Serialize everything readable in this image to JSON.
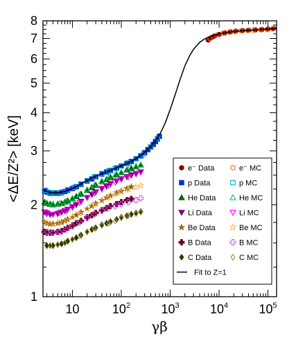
{
  "chart_data": {
    "type": "scatter",
    "title": "",
    "xlabel": "γβ",
    "ylabel": "<ΔE/Z²> [keV]",
    "xscale": "log",
    "yscale": "log",
    "xlim": [
      2.5,
      150000
    ],
    "ylim": [
      1,
      8
    ],
    "legend_position": "right",
    "x_ticks": [
      {
        "value": 10,
        "base": "10",
        "exp": ""
      },
      {
        "value": 100,
        "base": "10",
        "exp": "2"
      },
      {
        "value": 1000,
        "base": "10",
        "exp": "3"
      },
      {
        "value": 10000,
        "base": "10",
        "exp": "4"
      },
      {
        "value": 100000,
        "base": "10",
        "exp": "5"
      }
    ],
    "y_ticks": [
      {
        "value": 1,
        "label": "1"
      },
      {
        "value": 2,
        "label": "2"
      },
      {
        "value": 3,
        "label": "3"
      },
      {
        "value": 4,
        "label": "4"
      },
      {
        "value": 5,
        "label": "5"
      },
      {
        "value": 6,
        "label": "6"
      },
      {
        "value": 7,
        "label": "7"
      },
      {
        "value": 8,
        "label": "8"
      }
    ],
    "series": [
      {
        "name": "e⁻ Data",
        "marker": "circle",
        "filled": true,
        "color": "#8b0000",
        "x": [
          6000,
          7000,
          8000,
          10000,
          13000,
          17000,
          22000,
          30000,
          40000,
          55000,
          75000,
          100000,
          130000
        ],
        "y": [
          6.92,
          7.05,
          7.13,
          7.22,
          7.3,
          7.36,
          7.4,
          7.43,
          7.45,
          7.47,
          7.49,
          7.52,
          7.55
        ]
      },
      {
        "name": "e⁻ MC",
        "marker": "circle",
        "filled": false,
        "color": "#ff6600",
        "x": [
          6500,
          9000,
          12000,
          16000,
          21000,
          28000,
          38000,
          50000,
          70000,
          95000,
          125000
        ],
        "y": [
          7.0,
          7.18,
          7.28,
          7.34,
          7.38,
          7.42,
          7.44,
          7.46,
          7.48,
          7.5,
          7.53
        ]
      },
      {
        "name": "p Data",
        "marker": "square",
        "filled": true,
        "color": "#0033cc",
        "x": [
          2.7,
          3,
          3.5,
          4,
          5,
          6,
          7,
          8,
          10,
          12,
          15,
          20,
          25,
          30,
          40,
          50,
          60,
          80,
          100,
          130,
          160,
          200,
          250,
          300,
          350,
          400,
          450,
          500,
          550,
          600
        ],
        "y": [
          2.22,
          2.2,
          2.18,
          2.18,
          2.18,
          2.19,
          2.21,
          2.23,
          2.26,
          2.29,
          2.33,
          2.39,
          2.43,
          2.47,
          2.52,
          2.56,
          2.59,
          2.64,
          2.68,
          2.73,
          2.77,
          2.83,
          2.89,
          2.96,
          3.03,
          3.09,
          3.15,
          3.22,
          3.28,
          3.35
        ]
      },
      {
        "name": "p MC",
        "marker": "square",
        "filled": false,
        "color": "#00aacc",
        "x": [
          2.8,
          3.5,
          4.5,
          6,
          8,
          11,
          15,
          20,
          28,
          40,
          55,
          75,
          100,
          140,
          200,
          280,
          400,
          550
        ],
        "y": [
          2.23,
          2.19,
          2.19,
          2.2,
          2.24,
          2.28,
          2.34,
          2.4,
          2.47,
          2.53,
          2.58,
          2.63,
          2.68,
          2.74,
          2.83,
          2.92,
          3.09,
          3.3
        ]
      },
      {
        "name": "He Data",
        "marker": "triangle-up",
        "filled": true,
        "color": "#006600",
        "x": [
          2.7,
          3,
          3.5,
          4,
          5,
          6,
          7,
          8,
          10,
          12,
          15,
          20,
          25,
          30,
          40,
          50,
          60,
          80,
          100,
          130,
          160,
          200,
          250
        ],
        "y": [
          2.04,
          2.02,
          2.01,
          2.0,
          2.01,
          2.02,
          2.04,
          2.06,
          2.09,
          2.13,
          2.17,
          2.23,
          2.28,
          2.32,
          2.38,
          2.42,
          2.46,
          2.51,
          2.55,
          2.6,
          2.63,
          2.67,
          2.7
        ]
      },
      {
        "name": "He MC",
        "marker": "triangle-up",
        "filled": false,
        "color": "#00cc66",
        "x": [
          3,
          4,
          5.5,
          7.5,
          10,
          14,
          20,
          28,
          40,
          55,
          75,
          100,
          140,
          200,
          250
        ],
        "y": [
          2.03,
          2.01,
          2.02,
          2.05,
          2.1,
          2.16,
          2.24,
          2.31,
          2.39,
          2.45,
          2.5,
          2.55,
          2.6,
          2.66,
          2.7
        ]
      },
      {
        "name": "Li Data",
        "marker": "triangle-down",
        "filled": true,
        "color": "#800080",
        "x": [
          2.7,
          3,
          3.5,
          4,
          5,
          6,
          7,
          8,
          10,
          12,
          15,
          20,
          25,
          30,
          40,
          50,
          60,
          80,
          100,
          130,
          160,
          200,
          250
        ],
        "y": [
          1.89,
          1.87,
          1.86,
          1.86,
          1.87,
          1.89,
          1.91,
          1.93,
          1.97,
          2.0,
          2.05,
          2.11,
          2.16,
          2.2,
          2.26,
          2.3,
          2.34,
          2.39,
          2.43,
          2.47,
          2.5,
          2.53,
          2.56
        ]
      },
      {
        "name": "Li MC",
        "marker": "triangle-down",
        "filled": false,
        "color": "#ff00ff",
        "x": [
          3,
          4,
          5.5,
          7.5,
          10,
          14,
          20,
          28,
          40,
          55,
          75,
          100,
          140,
          200,
          250
        ],
        "y": [
          1.88,
          1.86,
          1.88,
          1.91,
          1.96,
          2.03,
          2.11,
          2.18,
          2.25,
          2.31,
          2.37,
          2.42,
          2.47,
          2.52,
          2.56
        ]
      },
      {
        "name": "Be Data",
        "marker": "star",
        "filled": true,
        "color": "#8b6914",
        "x": [
          2.7,
          3,
          3.5,
          4,
          5,
          6,
          7,
          8,
          10,
          12,
          15,
          20,
          25,
          30,
          40,
          50,
          60,
          80,
          100,
          130,
          160
        ],
        "y": [
          1.75,
          1.74,
          1.73,
          1.73,
          1.74,
          1.75,
          1.77,
          1.79,
          1.82,
          1.85,
          1.89,
          1.94,
          1.98,
          2.02,
          2.07,
          2.11,
          2.14,
          2.19,
          2.22,
          2.26,
          2.29
        ]
      },
      {
        "name": "Be MC",
        "marker": "star",
        "filled": false,
        "color": "#ffaa44",
        "x": [
          3,
          4,
          5.5,
          7.5,
          10,
          14,
          20,
          28,
          40,
          55,
          75,
          100,
          140,
          200,
          250
        ],
        "y": [
          1.75,
          1.74,
          1.75,
          1.78,
          1.82,
          1.87,
          1.94,
          2.0,
          2.06,
          2.11,
          2.16,
          2.2,
          2.24,
          2.28,
          2.31
        ]
      },
      {
        "name": "B Data",
        "marker": "cross",
        "filled": true,
        "color": "#660022",
        "x": [
          2.7,
          3,
          3.5,
          4,
          5,
          6,
          7,
          8,
          10,
          12,
          15,
          20,
          25,
          30,
          40,
          50,
          60,
          80,
          100,
          130,
          160
        ],
        "y": [
          1.63,
          1.62,
          1.62,
          1.62,
          1.63,
          1.64,
          1.66,
          1.68,
          1.71,
          1.74,
          1.77,
          1.82,
          1.85,
          1.88,
          1.92,
          1.95,
          1.98,
          2.01,
          2.04,
          2.07,
          2.09
        ]
      },
      {
        "name": "B MC",
        "marker": "cross",
        "filled": false,
        "color": "#cc44ff",
        "x": [
          3,
          4,
          5.5,
          7.5,
          10,
          14,
          20,
          28,
          40,
          55,
          75,
          100,
          140,
          200,
          250
        ],
        "y": [
          1.63,
          1.62,
          1.63,
          1.66,
          1.7,
          1.75,
          1.81,
          1.86,
          1.91,
          1.95,
          1.98,
          2.01,
          2.04,
          2.07,
          2.1
        ]
      },
      {
        "name": "C Data",
        "marker": "diamond",
        "filled": true,
        "color": "#333300",
        "x": [
          3,
          3.5,
          4,
          5,
          6,
          7,
          8,
          10,
          12,
          15,
          20,
          25,
          30,
          40,
          50,
          60,
          80,
          100,
          130,
          160,
          200,
          250
        ],
        "y": [
          1.47,
          1.47,
          1.47,
          1.48,
          1.49,
          1.5,
          1.52,
          1.54,
          1.56,
          1.59,
          1.63,
          1.66,
          1.68,
          1.72,
          1.74,
          1.76,
          1.79,
          1.82,
          1.84,
          1.86,
          1.88,
          1.9
        ]
      },
      {
        "name": "C MC",
        "marker": "diamond",
        "filled": false,
        "color": "#999933",
        "x": [
          3.5,
          5,
          7,
          10,
          14,
          20,
          28,
          40,
          55,
          75,
          100,
          140,
          200,
          250
        ],
        "y": [
          1.47,
          1.48,
          1.5,
          1.54,
          1.58,
          1.63,
          1.67,
          1.71,
          1.74,
          1.77,
          1.81,
          1.84,
          1.87,
          1.89
        ]
      },
      {
        "name": "Fit to Z=1",
        "marker": "line",
        "filled": false,
        "color": "#000000",
        "x": [
          2.5,
          3,
          4,
          5,
          7,
          10,
          15,
          20,
          30,
          50,
          70,
          100,
          150,
          200,
          300,
          400,
          500,
          600,
          700,
          800,
          1000,
          1300,
          1600,
          2000,
          2500,
          3000,
          4000,
          5000,
          6000,
          8000,
          10000,
          15000,
          20000,
          30000,
          50000,
          100000,
          150000
        ],
        "y": [
          2.24,
          2.21,
          2.19,
          2.19,
          2.21,
          2.26,
          2.34,
          2.4,
          2.48,
          2.56,
          2.62,
          2.68,
          2.76,
          2.83,
          2.97,
          3.1,
          3.24,
          3.38,
          3.55,
          3.72,
          4.1,
          4.65,
          5.15,
          5.7,
          6.15,
          6.45,
          6.8,
          6.97,
          7.07,
          7.18,
          7.25,
          7.33,
          7.38,
          7.42,
          7.46,
          7.52,
          7.56
        ]
      }
    ]
  }
}
